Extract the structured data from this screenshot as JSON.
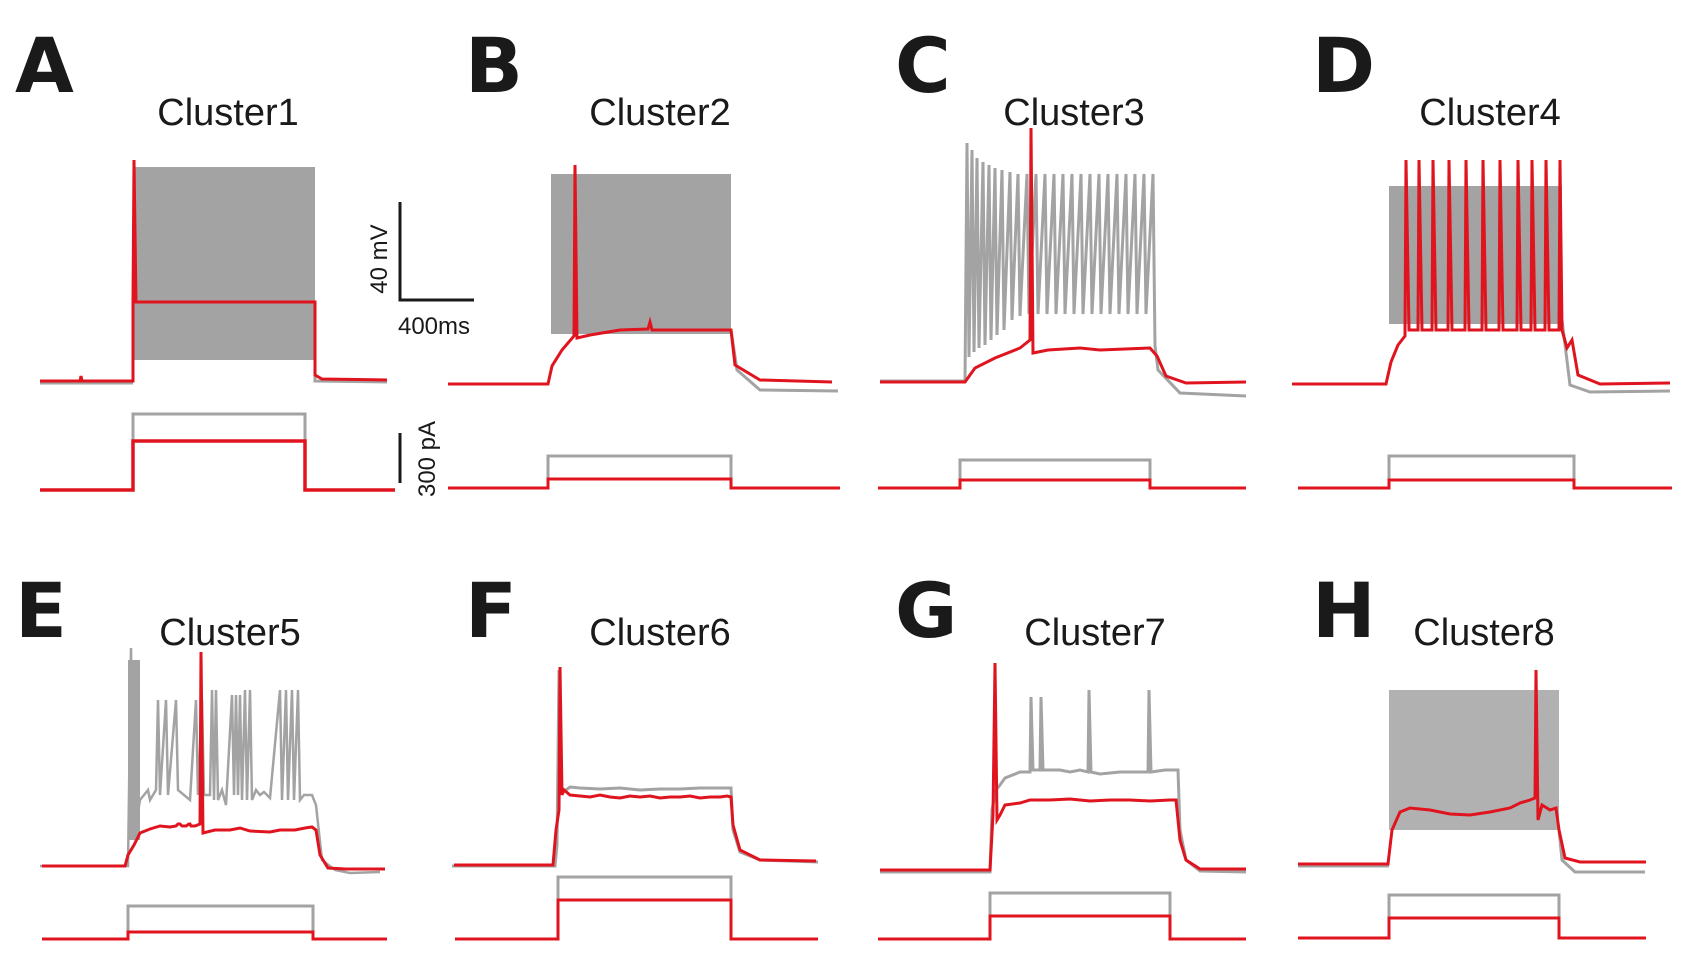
{
  "figure": {
    "colors": {
      "gray": "#a3a3a3",
      "red": "#e0141e",
      "black": "#1a1a1a"
    },
    "scale_bar": {
      "voltage_label": "40 mV",
      "time_label": "400ms",
      "current_label": "300 pA"
    },
    "panels": [
      {
        "letter": "A",
        "title": "Cluster1",
        "gray_trace": "dense firing block",
        "red_trace": "single spike at onset, then plateau",
        "gray_step": "large",
        "red_step": "large"
      },
      {
        "letter": "B",
        "title": "Cluster2",
        "gray_trace": "dense firing block",
        "red_trace": "single spike, then plateau",
        "gray_step": "small",
        "red_step": "small"
      },
      {
        "letter": "C",
        "title": "Cluster3",
        "gray_trace": "adapting spike train",
        "red_trace": "single late spike",
        "gray_step": "small",
        "red_step": "small"
      },
      {
        "letter": "D",
        "title": "Cluster4",
        "gray_trace": "dense firing block",
        "red_trace": "regular spike train",
        "gray_step": "small",
        "red_step": "small"
      },
      {
        "letter": "E",
        "title": "Cluster5",
        "gray_trace": "irregular bursting",
        "red_trace": "two spikes",
        "gray_step": "small",
        "red_step": "small"
      },
      {
        "letter": "F",
        "title": "Cluster6",
        "gray_trace": "onset spike, then plateau",
        "red_trace": "onset spike, then plateau",
        "gray_step": "large",
        "red_step": "medium"
      },
      {
        "letter": "G",
        "title": "Cluster7",
        "gray_trace": "sparse spikes",
        "red_trace": "onset spike, then plateau",
        "gray_step": "medium",
        "red_step": "medium"
      },
      {
        "letter": "H",
        "title": "Cluster8",
        "gray_trace": "regular spike train",
        "red_trace": "single late spike",
        "gray_step": "medium",
        "red_step": "small"
      }
    ]
  }
}
